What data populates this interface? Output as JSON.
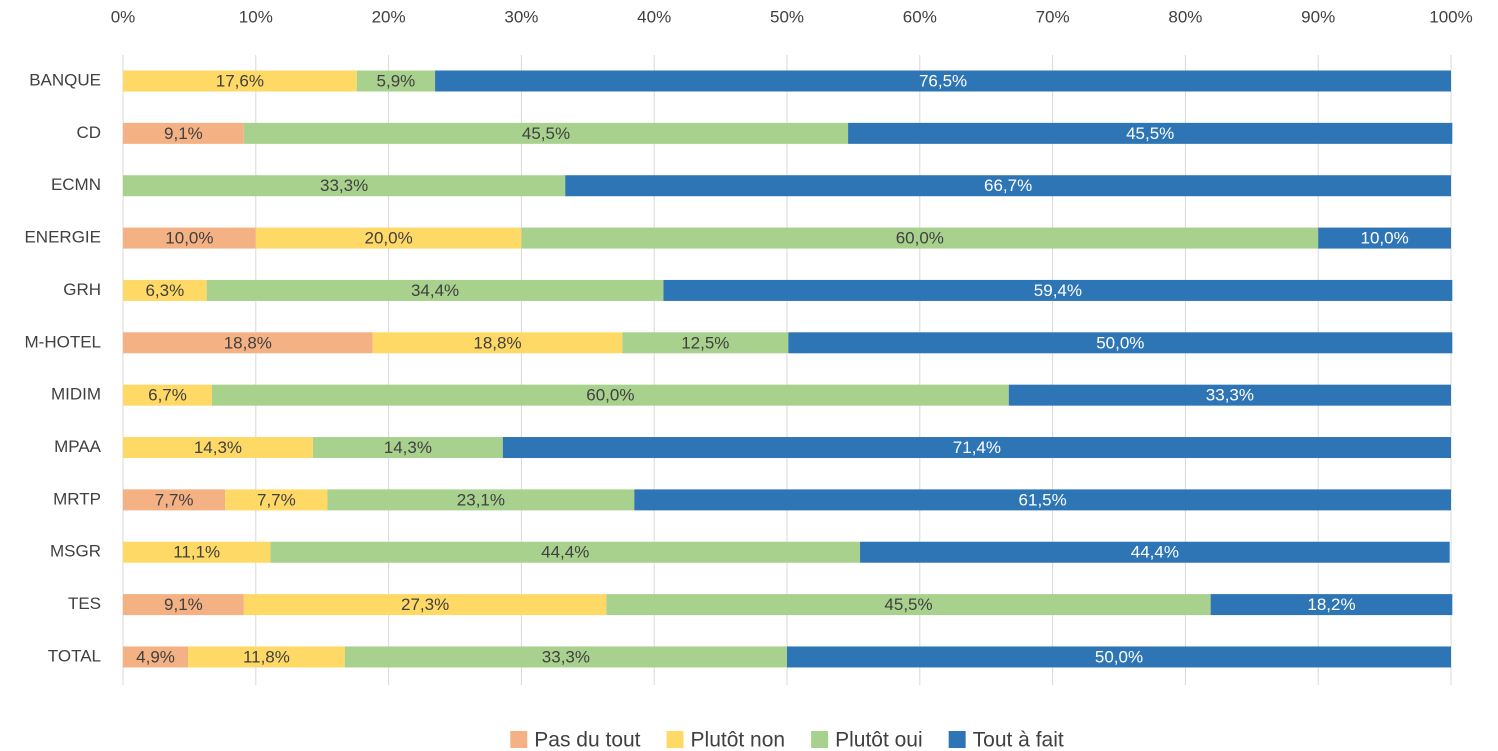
{
  "chart_data": {
    "type": "stacked_bar_horizontal",
    "categories": [
      "BANQUE",
      "CD",
      "ECMN",
      "ENERGIE",
      "GRH",
      "M-HOTEL",
      "MIDIM",
      "MPAA",
      "MRTP",
      "MSGR",
      "TES",
      "TOTAL"
    ],
    "series": [
      {
        "name": "Pas du tout",
        "color": "#f4b183",
        "label_color": "#404040",
        "values": [
          null,
          9.1,
          null,
          10.0,
          null,
          18.8,
          null,
          null,
          7.7,
          null,
          9.1,
          4.9
        ],
        "value_labels": [
          null,
          "9,1%",
          null,
          "10,0%",
          null,
          "18,8%",
          null,
          null,
          "7,7%",
          null,
          "9,1%",
          "4,9%"
        ]
      },
      {
        "name": "Plutôt non",
        "color": "#ffd966",
        "label_color": "#404040",
        "values": [
          17.6,
          null,
          null,
          20.0,
          6.3,
          18.8,
          6.7,
          14.3,
          7.7,
          11.1,
          27.3,
          11.8
        ],
        "value_labels": [
          "17,6%",
          null,
          null,
          "20,0%",
          "6,3%",
          "18,8%",
          "6,7%",
          "14,3%",
          "7,7%",
          "11,1%",
          "27,3%",
          "11,8%"
        ]
      },
      {
        "name": "Plutôt oui",
        "color": "#a9d18e",
        "label_color": "#404040",
        "values": [
          5.9,
          45.5,
          33.3,
          60.0,
          34.4,
          12.5,
          60.0,
          14.3,
          23.1,
          44.4,
          45.5,
          33.3
        ],
        "value_labels": [
          "5,9%",
          "45,5%",
          "33,3%",
          "60,0%",
          "34,4%",
          "12,5%",
          "60,0%",
          "14,3%",
          "23,1%",
          "44,4%",
          "45,5%",
          "33,3%"
        ]
      },
      {
        "name": "Tout à fait",
        "color": "#2e75b6",
        "label_color": "#ffffff",
        "values": [
          76.5,
          45.5,
          66.7,
          10.0,
          59.4,
          50.0,
          33.3,
          71.4,
          61.5,
          44.4,
          18.2,
          50.0
        ],
        "value_labels": [
          "76,5%",
          "45,5%",
          "66,7%",
          "10,0%",
          "59,4%",
          "50,0%",
          "33,3%",
          "71,4%",
          "61,5%",
          "44,4%",
          "18,2%",
          "50,0%"
        ]
      }
    ],
    "xlim": [
      0,
      100
    ],
    "xticks": [
      {
        "value": 0,
        "label": "0%"
      },
      {
        "value": 10,
        "label": "10%"
      },
      {
        "value": 20,
        "label": "20%"
      },
      {
        "value": 30,
        "label": "30%"
      },
      {
        "value": 40,
        "label": "40%"
      },
      {
        "value": 50,
        "label": "50%"
      },
      {
        "value": 60,
        "label": "60%"
      },
      {
        "value": 70,
        "label": "70%"
      },
      {
        "value": 80,
        "label": "80%"
      },
      {
        "value": 90,
        "label": "90%"
      },
      {
        "value": 100,
        "label": "100%"
      }
    ],
    "grid": true,
    "legend": "bottom"
  }
}
